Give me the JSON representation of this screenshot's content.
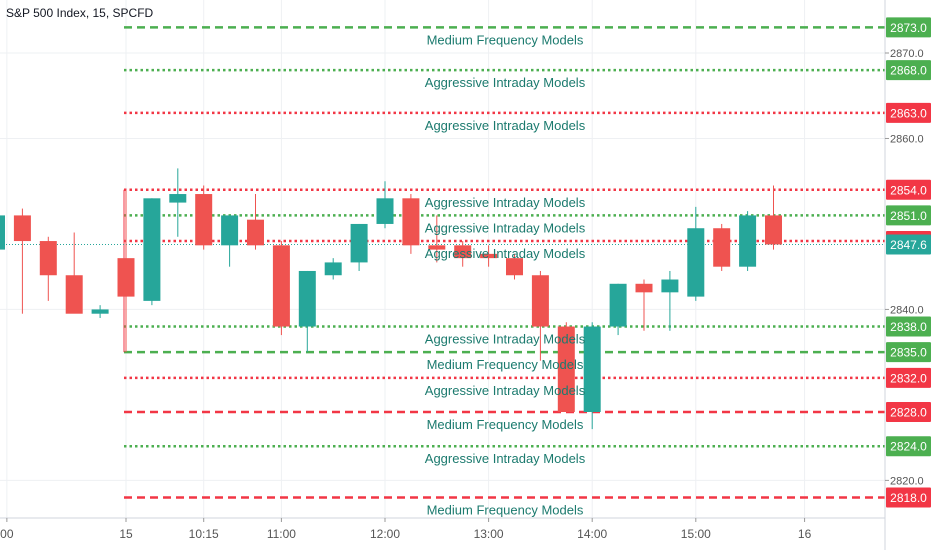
{
  "symbol_title": "S&P 500 Index, 15, SPCFD",
  "colors": {
    "up": "#26a69a",
    "down": "#ef5350",
    "green_line": "#4caf50",
    "red_line": "#f23645",
    "label_text": "#1b7a6e",
    "grid": "#eef0f3",
    "axis_text": "#555555",
    "price_line": "#26a69a"
  },
  "chart_data": {
    "type": "candlestick",
    "title": "S&P 500 Index, 15, SPCFD",
    "ylim": [
      2815.6,
      2876.2
    ],
    "price_ticks": [
      "2870.0",
      "2860.0",
      "2840.0",
      "2820.0"
    ],
    "time_ticks": [
      {
        "label": "00",
        "bar": -4.6
      },
      {
        "label": "15",
        "bar": 0
      },
      {
        "label": "10:15",
        "bar": 3
      },
      {
        "label": "11:00",
        "bar": 6
      },
      {
        "label": "12:00",
        "bar": 10
      },
      {
        "label": "13:00",
        "bar": 14
      },
      {
        "label": "14:00",
        "bar": 18
      },
      {
        "label": "15:00",
        "bar": 22
      },
      {
        "label": "16",
        "bar": 26.2
      }
    ],
    "candles_prev_day": [
      {
        "o": 2847.0,
        "h": 2851.5,
        "l": 2845.5,
        "c": 2851.0
      },
      {
        "o": 2851.0,
        "h": 2851.8,
        "l": 2839.5,
        "c": 2848.0
      },
      {
        "o": 2848.0,
        "h": 2848.5,
        "l": 2841.0,
        "c": 2844.0
      },
      {
        "o": 2844.0,
        "h": 2849.0,
        "l": 2840.5,
        "c": 2839.5
      },
      {
        "o": 2839.5,
        "h": 2840.5,
        "l": 2839.0,
        "c": 2840.0
      }
    ],
    "candles": [
      {
        "o": 2846.0,
        "h": 2854.0,
        "l": 2835.0,
        "c": 2841.5
      },
      {
        "o": 2841.0,
        "h": 2853.0,
        "l": 2840.5,
        "c": 2853.0
      },
      {
        "o": 2852.5,
        "h": 2856.5,
        "l": 2848.5,
        "c": 2853.5
      },
      {
        "o": 2853.5,
        "h": 2854.5,
        "l": 2847.0,
        "c": 2847.5
      },
      {
        "o": 2847.5,
        "h": 2851.0,
        "l": 2845.0,
        "c": 2851.0
      },
      {
        "o": 2850.5,
        "h": 2853.5,
        "l": 2847.0,
        "c": 2847.5
      },
      {
        "o": 2847.5,
        "h": 2848.0,
        "l": 2837.0,
        "c": 2838.0
      },
      {
        "o": 2838.0,
        "h": 2844.5,
        "l": 2835.0,
        "c": 2844.5
      },
      {
        "o": 2844.0,
        "h": 2846.0,
        "l": 2843.5,
        "c": 2845.5
      },
      {
        "o": 2845.5,
        "h": 2850.0,
        "l": 2844.5,
        "c": 2850.0
      },
      {
        "o": 2850.0,
        "h": 2855.0,
        "l": 2849.5,
        "c": 2853.0
      },
      {
        "o": 2853.0,
        "h": 2853.5,
        "l": 2846.5,
        "c": 2847.5
      },
      {
        "o": 2847.5,
        "h": 2851.0,
        "l": 2845.5,
        "c": 2847.0
      },
      {
        "o": 2847.5,
        "h": 2848.0,
        "l": 2845.0,
        "c": 2846.0
      },
      {
        "o": 2846.5,
        "h": 2847.5,
        "l": 2845.0,
        "c": 2846.0
      },
      {
        "o": 2846.0,
        "h": 2846.5,
        "l": 2843.5,
        "c": 2844.0
      },
      {
        "o": 2844.0,
        "h": 2844.5,
        "l": 2834.0,
        "c": 2838.0
      },
      {
        "o": 2838.0,
        "h": 2838.5,
        "l": 2828.0,
        "c": 2828.0
      },
      {
        "o": 2828.0,
        "h": 2838.5,
        "l": 2826.0,
        "c": 2838.0
      },
      {
        "o": 2838.0,
        "h": 2843.0,
        "l": 2837.0,
        "c": 2843.0
      },
      {
        "o": 2843.0,
        "h": 2843.5,
        "l": 2837.5,
        "c": 2842.0
      },
      {
        "o": 2842.0,
        "h": 2844.5,
        "l": 2837.5,
        "c": 2843.5
      },
      {
        "o": 2841.5,
        "h": 2852.0,
        "l": 2841.0,
        "c": 2849.5
      },
      {
        "o": 2849.5,
        "h": 2850.0,
        "l": 2844.5,
        "c": 2845.0
      },
      {
        "o": 2845.0,
        "h": 2851.5,
        "l": 2844.5,
        "c": 2851.0
      },
      {
        "o": 2851.0,
        "h": 2854.5,
        "l": 2847.0,
        "c": 2847.6
      }
    ],
    "levels": [
      {
        "price": 2873.0,
        "price_label": "2873.0",
        "color": "green",
        "style": "dashed",
        "label": "Medium Frequency Models"
      },
      {
        "price": 2868.0,
        "price_label": "2868.0",
        "color": "green",
        "style": "dotted",
        "label": "Aggressive Intraday Models"
      },
      {
        "price": 2863.0,
        "price_label": "2863.0",
        "color": "red",
        "style": "dotted",
        "label": "Aggressive Intraday Models"
      },
      {
        "price": 2854.0,
        "price_label": "2854.0",
        "color": "red",
        "style": "dotted",
        "label": "Aggressive Intraday Models"
      },
      {
        "price": 2851.0,
        "price_label": "2851.0",
        "color": "green",
        "style": "dotted",
        "label": "Aggressive Intraday Models"
      },
      {
        "price": 2848.0,
        "price_label": "2848.0",
        "color": "red",
        "style": "dotted",
        "label": "Aggressive Intraday Models"
      },
      {
        "price": 2838.0,
        "price_label": "2838.0",
        "color": "green",
        "style": "dotted",
        "label": "Aggressive Intraday Models"
      },
      {
        "price": 2835.0,
        "price_label": "2835.0",
        "color": "green",
        "style": "dashed",
        "label": "Medium Frequency Models"
      },
      {
        "price": 2832.0,
        "price_label": "2832.0",
        "color": "red",
        "style": "dotted",
        "label": "Aggressive Intraday Models"
      },
      {
        "price": 2828.0,
        "price_label": "2828.0",
        "color": "red",
        "style": "dashed",
        "label": "Medium Frequency Models"
      },
      {
        "price": 2824.0,
        "price_label": "2824.0",
        "color": "green",
        "style": "dotted",
        "label": "Aggressive Intraday Models"
      },
      {
        "price": 2818.0,
        "price_label": "2818.0",
        "color": "red",
        "style": "dashed",
        "label": "Medium Frequency Models"
      }
    ],
    "last_price": {
      "value": 2847.6,
      "label": "2847.6"
    }
  }
}
